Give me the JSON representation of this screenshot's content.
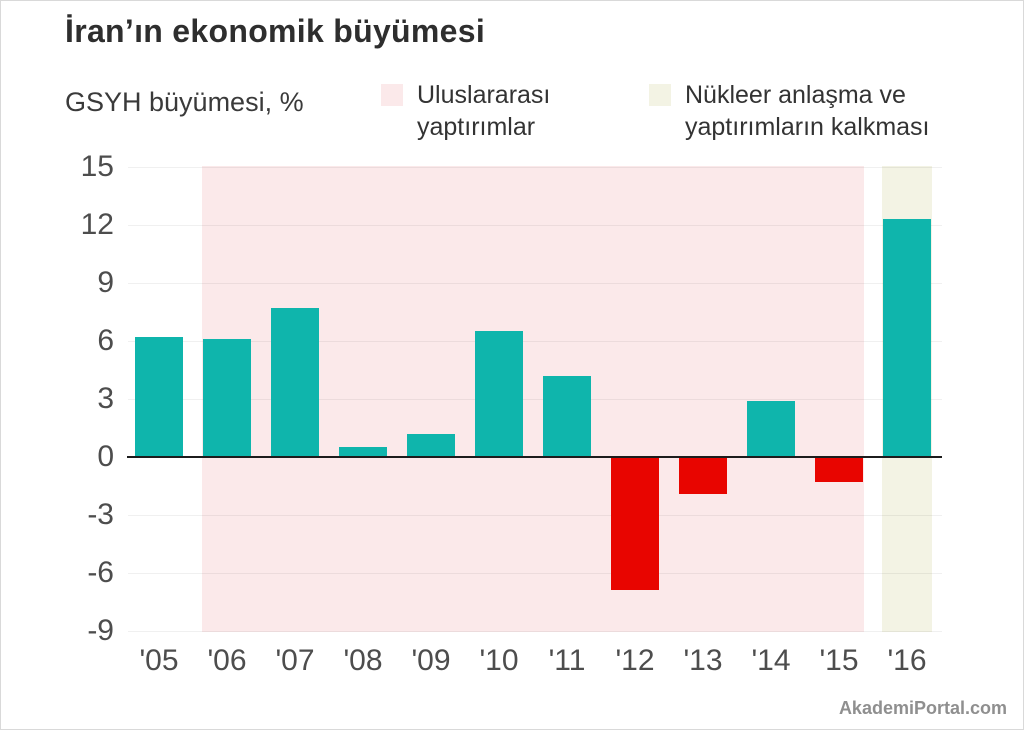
{
  "header": {
    "title": "İran’ın ekonomik büyümesi",
    "subtitle": "GSYH büyümesi, %"
  },
  "legend": [
    {
      "label": "Uluslararası yaptırımlar",
      "color": "#fbe9ea"
    },
    {
      "label": "Nükleer anlaşma ve yaptırımların kalkması",
      "color": "#f3f3e4"
    }
  ],
  "watermark": "AkademiPortal.com",
  "chart_data": {
    "type": "bar",
    "title": "İran’ın ekonomik büyümesi",
    "xlabel": "",
    "ylabel": "GSYH büyümesi, %",
    "categories": [
      "'05",
      "'06",
      "'07",
      "'08",
      "'09",
      "'10",
      "'11",
      "'12",
      "'13",
      "'14",
      "'15",
      "'16"
    ],
    "values": [
      6.2,
      6.1,
      7.7,
      0.5,
      1.2,
      6.5,
      4.2,
      -6.9,
      -1.9,
      2.9,
      -1.3,
      12.3
    ],
    "ylim": [
      -9,
      15
    ],
    "yticks": [
      15,
      12,
      9,
      6,
      3,
      0,
      -3,
      -6,
      -9
    ],
    "grid": true,
    "legend_position": "top",
    "bar_colors": {
      "positive": "#0fb5ac",
      "negative": "#e80500"
    },
    "bands": [
      {
        "label": "Uluslararası yaptırımlar",
        "from_category": "'06",
        "to_category": "'15",
        "color": "#fbe9ea"
      },
      {
        "label": "Nükleer anlaşma ve yaptırımların kalkması",
        "from_category": "'16",
        "to_category": "'16",
        "color": "#f3f3e4"
      }
    ]
  }
}
